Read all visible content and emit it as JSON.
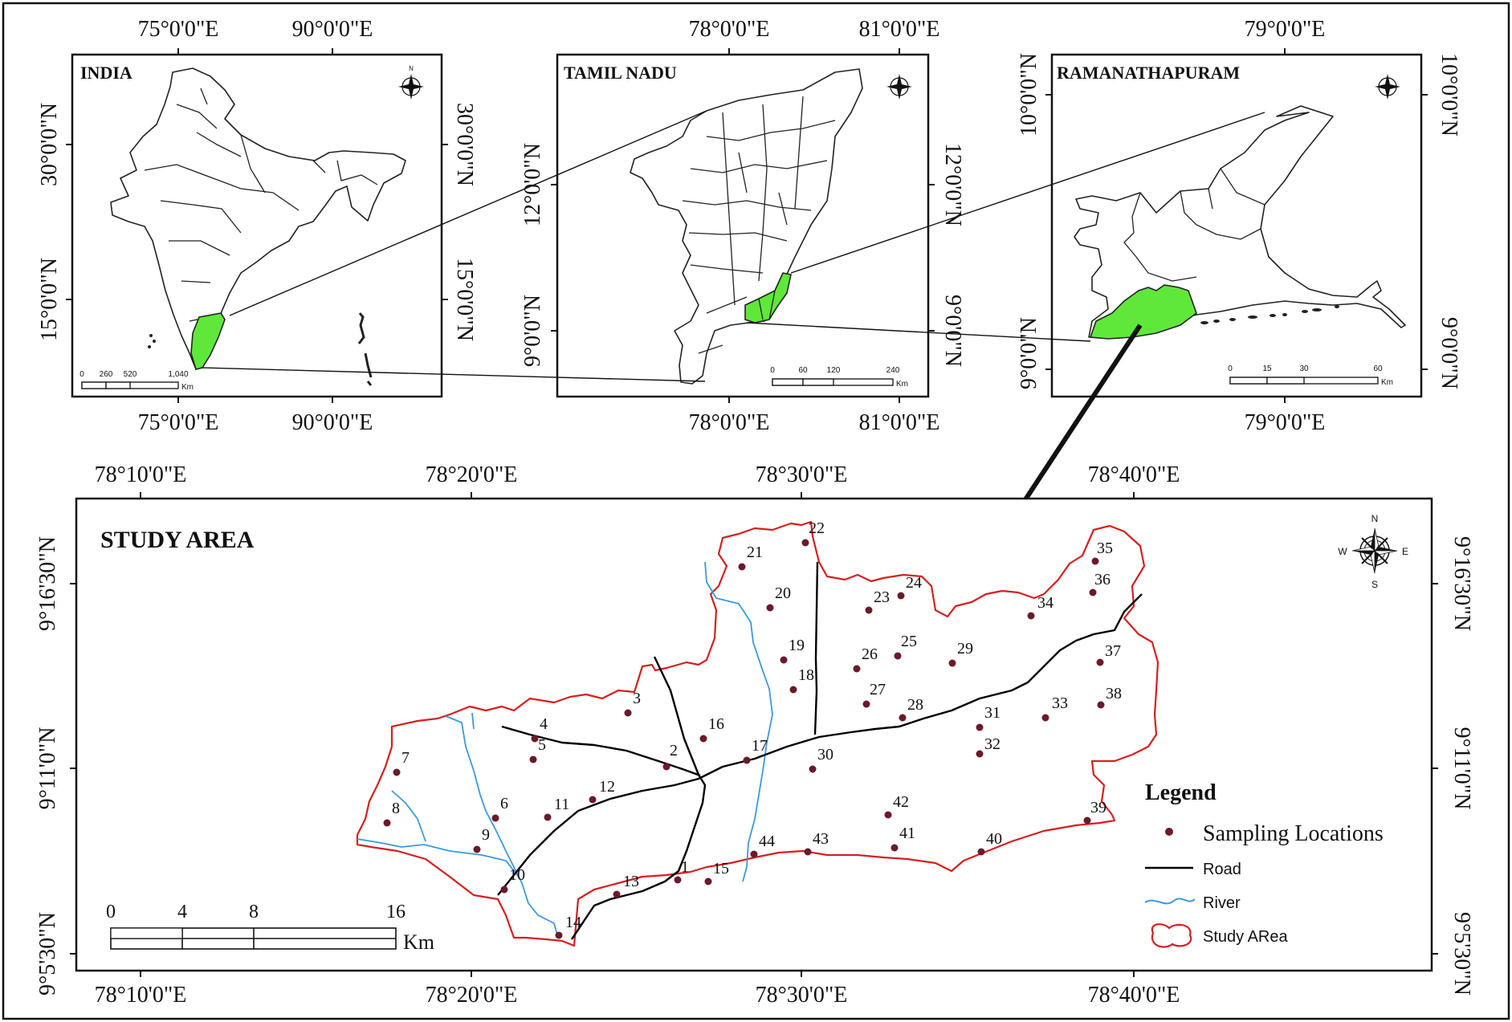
{
  "panels": {
    "india": {
      "title": "INDIA",
      "top_ticks": [
        "75°0'0\"E",
        "90°0'0\"E"
      ],
      "bottom_ticks": [
        "75°0'0\"E",
        "90°0'0\"E"
      ],
      "left_ticks": [
        "30°0'0\"N",
        "15°0'0\"N"
      ],
      "right_ticks": [
        "30°0'0\"N",
        "15°0'0\"N"
      ],
      "scale_labels": [
        "0",
        "260",
        "520",
        "1,040"
      ],
      "scale_unit": "Km"
    },
    "tamil_nadu": {
      "title": "TAMIL NADU",
      "top_ticks": [
        "78°0'0\"E",
        "81°0'0\"E"
      ],
      "bottom_ticks": [
        "78°0'0\"E",
        "81°0'0\"E"
      ],
      "left_ticks": [
        "12°0'0\"N",
        "9°0'0\"N"
      ],
      "right_ticks": [
        "12°0'0\"N",
        "9°0'0\"N"
      ],
      "scale_labels": [
        "0",
        "60",
        "120",
        "240"
      ],
      "scale_unit": "Km"
    },
    "ramanathapuram": {
      "title": "RAMANATHAPURAM",
      "top_ticks": [
        "79°0'0\"E"
      ],
      "bottom_ticks": [
        "79°0'0\"E"
      ],
      "left_ticks": [
        "10°0'0\"N",
        "9°0'0\"N"
      ],
      "right_ticks": [
        "10°0'0\"N",
        "9°0'0\"N"
      ],
      "scale_labels": [
        "0",
        "15",
        "30",
        "60"
      ],
      "scale_unit": "Km"
    },
    "study_area": {
      "title": "STUDY AREA",
      "top_ticks": [
        "78°10'0\"E",
        "78°20'0\"E",
        "78°30'0\"E",
        "78°40'0\"E"
      ],
      "bottom_ticks": [
        "78°10'0\"E",
        "78°20'0\"E",
        "78°30'0\"E",
        "78°40'0\"E"
      ],
      "left_ticks": [
        "9°16'30\"N",
        "9°11'0\"N",
        "9°5'30\"N"
      ],
      "right_ticks": [
        "9°16'30\"N",
        "9°11'0\"N",
        "9°5'30\"N"
      ],
      "scale_labels": [
        "0",
        "4",
        "8",
        "16"
      ],
      "scale_unit": "Km"
    }
  },
  "compass": {
    "n": "N",
    "s": "S",
    "e": "E",
    "w": "W"
  },
  "legend": {
    "title": "Legend",
    "items": [
      {
        "label": "Sampling Locations",
        "type": "point",
        "color": "#6b1a2a"
      },
      {
        "label": "Road",
        "type": "line",
        "color": "#000000"
      },
      {
        "label": "River",
        "type": "line",
        "color": "#3a9ad9"
      },
      {
        "label": "Study ARea",
        "type": "polygon",
        "color": "#d42020"
      }
    ]
  },
  "sampling_locations": [
    "1",
    "2",
    "3",
    "4",
    "5",
    "6",
    "7",
    "8",
    "9",
    "10",
    "11",
    "12",
    "13",
    "14",
    "15",
    "16",
    "17",
    "18",
    "19",
    "20",
    "21",
    "22",
    "23",
    "24",
    "25",
    "26",
    "27",
    "28",
    "29",
    "30",
    "31",
    "32",
    "33",
    "34",
    "35",
    "36",
    "37",
    "38",
    "39",
    "40",
    "41",
    "42",
    "43",
    "44"
  ],
  "colors": {
    "highlight": "#5fe83a",
    "study_boundary": "#d42020",
    "river": "#3a9ad9",
    "road": "#000000",
    "point": "#6b1a2a"
  }
}
